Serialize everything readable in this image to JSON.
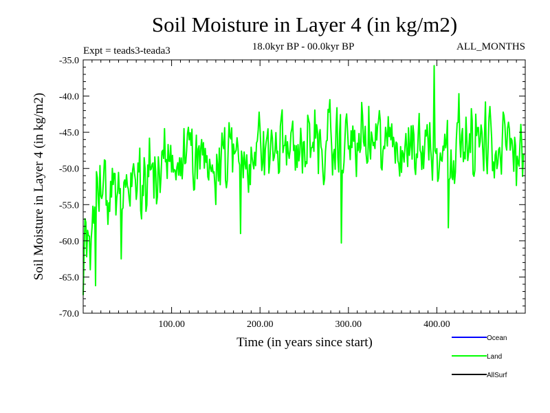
{
  "chart_data": {
    "type": "line",
    "title": "Soil Moisture in Layer 4 (in kg/m2)",
    "experiment": "Expt = teads3-teada3",
    "period": "18.0kyr BP - 00.0kyr BP",
    "season": "ALL_MONTHS",
    "xlabel": "Time (in years since start)",
    "ylabel": "Soil Moisture in Layer 4 (in kg/m2)",
    "xlim": [
      0,
      500
    ],
    "ylim": [
      -70,
      -35
    ],
    "x_ticks": [
      100,
      200,
      300,
      400
    ],
    "x_tick_labels": [
      "100.00",
      "200.00",
      "300.00",
      "400.00"
    ],
    "y_ticks": [
      -35,
      -40,
      -45,
      -50,
      -55,
      -60,
      -65,
      -70
    ],
    "y_tick_labels": [
      "-35.0",
      "-40.0",
      "-45.0",
      "-50.0",
      "-55.0",
      "-60.0",
      "-65.0",
      "-70.0"
    ],
    "legend": [
      {
        "name": "Ocean",
        "color": "#0000ff"
      },
      {
        "name": "Land",
        "color": "#00ff00"
      },
      {
        "name": "AllSurf",
        "color": "#000000"
      }
    ],
    "series": [
      {
        "name": "Land",
        "color": "#00ff00",
        "x_start": 0,
        "x_step": 1,
        "trend_x": [
          0,
          10,
          20,
          30,
          40,
          60,
          80,
          100,
          120,
          150,
          180,
          200,
          230,
          260,
          290,
          300,
          330,
          360,
          400,
          430,
          460,
          500
        ],
        "trend_y": [
          -60.5,
          -56,
          -51.5,
          -52.5,
          -53,
          -53,
          -51,
          -49,
          -48.5,
          -48.5,
          -48,
          -47.5,
          -47,
          -47,
          -47,
          -46.5,
          -46.5,
          -47,
          -46.5,
          -46.5,
          -47,
          -46.5
        ],
        "amplitude": 3.0,
        "extremes_x": [
          0,
          8,
          14,
          43,
          178,
          292,
          397,
          413
        ],
        "extremes_y": [
          -67.5,
          -64,
          -66.2,
          -62.5,
          -59,
          -60.3,
          -35.8,
          -58.2
        ],
        "n_points": 500
      }
    ]
  }
}
